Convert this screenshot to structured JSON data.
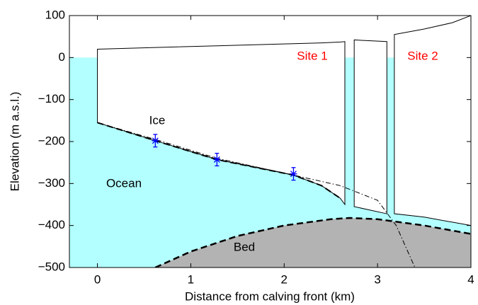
{
  "chart_data": {
    "type": "profile",
    "x_label": "Distance from calving front (km)",
    "y_label": "Elevation (m a.s.l.)",
    "xlim": [
      -0.3,
      4
    ],
    "ylim": [
      -500,
      100
    ],
    "xticks": [
      0,
      1,
      2,
      3,
      4
    ],
    "yticks": [
      {
        "value": -500,
        "label": "−500"
      },
      {
        "value": -400,
        "label": "−400"
      },
      {
        "value": -300,
        "label": "−300"
      },
      {
        "value": -200,
        "label": "−200"
      },
      {
        "value": -100,
        "label": "−100"
      },
      0,
      100
    ],
    "sea_level": 0,
    "ocean_color": "#b3ffff",
    "bed_color": "#b3b3b3",
    "measure_color": "#0000ff",
    "annotations": [
      "Ice",
      "Ocean",
      "Bed",
      "Site 1",
      "Site 2"
    ],
    "annotation_colors": [
      "#000000",
      "#000000",
      "#000000",
      "#ff0000",
      "#ff0000"
    ],
    "ice_segments": [
      {
        "x": [
          0,
          0.62,
          1.28,
          2.1,
          2.4,
          2.6,
          2.65
        ],
        "top": [
          20,
          24,
          28,
          33,
          35,
          37,
          38
        ],
        "base": [
          -155,
          -198,
          -243,
          -280,
          -305,
          -335,
          -350
        ]
      },
      {
        "x": [
          2.75,
          3.1
        ],
        "top": [
          42,
          38
        ],
        "base": [
          -355,
          -372
        ]
      },
      {
        "x": [
          3.18,
          3.5,
          3.8,
          4
        ],
        "top": [
          55,
          68,
          83,
          100
        ],
        "base": [
          -372,
          -380,
          -392,
          -400
        ]
      }
    ],
    "bed": {
      "x": [
        0.62,
        1,
        1.5,
        2,
        2.5,
        2.7,
        3,
        3.5,
        4
      ],
      "values": [
        -500,
        -462,
        -425,
        -400,
        -385,
        -382,
        -385,
        -400,
        -420
      ]
    },
    "fit": {
      "x": [
        0,
        0.62,
        1.28,
        2.1,
        2.4,
        2.6
      ],
      "values": [
        -155,
        -198,
        -243,
        -280,
        -305,
        -335
      ]
    },
    "model": {
      "x": [
        0,
        0.62,
        1.28,
        2.1,
        2.6,
        3,
        3.2,
        3.4
      ],
      "values": [
        -155,
        -195,
        -240,
        -280,
        -305,
        -340,
        -400,
        -500
      ]
    },
    "measurements": {
      "x": [
        0.62,
        1.28,
        2.1
      ],
      "values": [
        -198,
        -243,
        -277
      ],
      "errors": [
        15,
        15,
        15
      ]
    }
  }
}
